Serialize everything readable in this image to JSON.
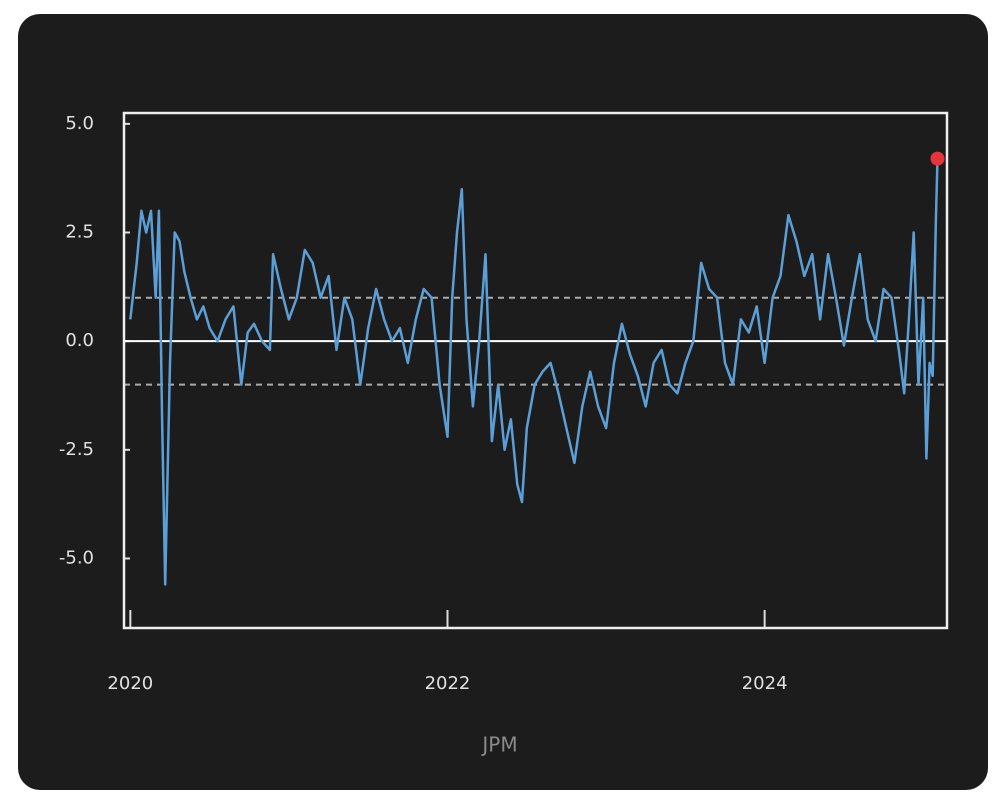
{
  "chart_data": {
    "type": "line",
    "xlabel": "JPM",
    "x": [
      2020.0,
      2020.04,
      2020.07,
      2020.1,
      2020.13,
      2020.16,
      2020.18,
      2020.2,
      2020.22,
      2020.25,
      2020.28,
      2020.31,
      2020.34,
      2020.38,
      2020.42,
      2020.46,
      2020.5,
      2020.55,
      2020.6,
      2020.65,
      2020.7,
      2020.74,
      2020.78,
      2020.83,
      2020.88,
      2020.9,
      2020.95,
      2021.0,
      2021.05,
      2021.1,
      2021.15,
      2021.2,
      2021.25,
      2021.3,
      2021.35,
      2021.4,
      2021.45,
      2021.5,
      2021.55,
      2021.6,
      2021.65,
      2021.7,
      2021.75,
      2021.8,
      2021.85,
      2021.9,
      2021.95,
      2022.0,
      2022.03,
      2022.06,
      2022.09,
      2022.12,
      2022.16,
      2022.2,
      2022.24,
      2022.28,
      2022.32,
      2022.36,
      2022.4,
      2022.44,
      2022.47,
      2022.5,
      2022.55,
      2022.6,
      2022.65,
      2022.7,
      2022.75,
      2022.8,
      2022.85,
      2022.9,
      2022.95,
      2023.0,
      2023.05,
      2023.1,
      2023.15,
      2023.2,
      2023.25,
      2023.3,
      2023.35,
      2023.4,
      2023.45,
      2023.5,
      2023.55,
      2023.6,
      2023.65,
      2023.7,
      2023.75,
      2023.8,
      2023.85,
      2023.9,
      2023.95,
      2024.0,
      2024.05,
      2024.1,
      2024.15,
      2024.2,
      2024.25,
      2024.3,
      2024.35,
      2024.4,
      2024.45,
      2024.5,
      2024.55,
      2024.6,
      2024.65,
      2024.7,
      2024.75,
      2024.8,
      2024.85,
      2024.88,
      2024.91,
      2024.94,
      2024.97,
      2025.0,
      2025.02,
      2025.04,
      2025.06,
      2025.08,
      2025.09
    ],
    "series": [
      {
        "color": "#5b9fd6",
        "values": [
          0.5,
          1.8,
          3.0,
          2.5,
          3.0,
          1.0,
          3.0,
          -1.8,
          -5.6,
          -0.5,
          2.5,
          2.3,
          1.6,
          1.0,
          0.5,
          0.8,
          0.3,
          0.0,
          0.5,
          0.8,
          -1.0,
          0.2,
          0.4,
          0.0,
          -0.2,
          2.0,
          1.2,
          0.5,
          1.0,
          2.1,
          1.8,
          1.0,
          1.5,
          -0.2,
          1.0,
          0.5,
          -1.0,
          0.3,
          1.2,
          0.5,
          0.0,
          0.3,
          -0.5,
          0.5,
          1.2,
          1.0,
          -1.0,
          -2.2,
          1.0,
          2.5,
          3.5,
          0.5,
          -1.5,
          0.0,
          2.0,
          -2.3,
          -1.0,
          -2.5,
          -1.8,
          -3.3,
          -3.7,
          -2.0,
          -1.0,
          -0.7,
          -0.5,
          -1.2,
          -2.0,
          -2.8,
          -1.5,
          -0.7,
          -1.5,
          -2.0,
          -0.5,
          0.4,
          -0.3,
          -0.8,
          -1.5,
          -0.5,
          -0.2,
          -1.0,
          -1.2,
          -0.5,
          0.0,
          1.8,
          1.2,
          1.0,
          -0.5,
          -1.0,
          0.5,
          0.2,
          0.8,
          -0.5,
          1.0,
          1.5,
          2.9,
          2.3,
          1.5,
          2.0,
          0.5,
          2.0,
          1.0,
          -0.1,
          1.0,
          2.0,
          0.5,
          0.0,
          1.2,
          1.0,
          -0.3,
          -1.2,
          0.5,
          2.5,
          -1.0,
          1.0,
          -2.7,
          -0.5,
          -0.8,
          2.8,
          4.2
        ]
      }
    ],
    "xlim": [
      2019.96,
      2025.15
    ],
    "xticks": [
      2020,
      2022,
      2024
    ],
    "ylim": [
      -6.6,
      5.25
    ],
    "yticks": [
      {
        "value": 5,
        "label": "5.0"
      },
      2.5,
      {
        "value": 0,
        "label": "0.0"
      },
      -2.5,
      {
        "value": -5,
        "label": "-5.0"
      }
    ],
    "hlines": [
      {
        "value": 0,
        "style": "solid"
      },
      {
        "value": 1,
        "style": "dashed"
      },
      {
        "value": -1,
        "style": "dashed"
      }
    ],
    "highlight_last": true,
    "highlight_color": "#e8333a"
  }
}
